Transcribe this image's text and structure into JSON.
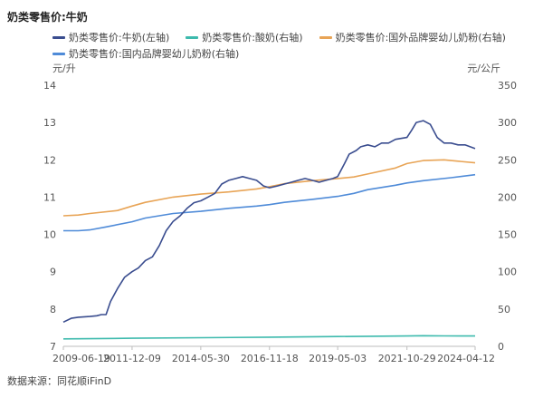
{
  "header": {
    "title": "奶类零售价:牛奶"
  },
  "footer": {
    "source": "数据来源：同花顺iFinD"
  },
  "chart_data": {
    "type": "line",
    "left_unit": "元/升",
    "right_unit": "元/公斤",
    "left_axis": {
      "ylim": [
        7,
        14
      ],
      "ticks": [
        "7",
        "8",
        "9",
        "10",
        "11",
        "12",
        "13",
        "14"
      ]
    },
    "right_axis": {
      "ylim": [
        0,
        350
      ],
      "ticks": [
        "0",
        "50",
        "100",
        "150",
        "200",
        "250",
        "300",
        "350"
      ]
    },
    "x_ticks": [
      "2009-06-19",
      "2011-12-09",
      "2014-05-30",
      "2016-11-18",
      "2019-05-03",
      "2021-10-29",
      "2024-04-12"
    ],
    "x_range": [
      "2009-06-19",
      "2024-04-12"
    ],
    "grid": false,
    "legend_position": "top",
    "series": [
      {
        "name": "奶类零售价:牛奶(左轴)",
        "axis": "left",
        "color": "#3a4d8f",
        "x": [
          "2009-06-19",
          "2009-10-01",
          "2010-01-01",
          "2010-06-01",
          "2010-09-01",
          "2010-11-01",
          "2011-01-01",
          "2011-03-01",
          "2011-06-01",
          "2011-09-01",
          "2011-12-09",
          "2012-03-01",
          "2012-06-01",
          "2012-09-01",
          "2012-12-01",
          "2013-03-01",
          "2013-06-01",
          "2013-09-01",
          "2013-12-01",
          "2014-03-01",
          "2014-05-30",
          "2014-09-01",
          "2014-12-01",
          "2015-03-01",
          "2015-06-01",
          "2015-09-01",
          "2015-12-01",
          "2016-03-01",
          "2016-06-01",
          "2016-09-01",
          "2016-11-18",
          "2017-03-01",
          "2017-06-01",
          "2017-09-01",
          "2017-12-01",
          "2018-03-01",
          "2018-06-01",
          "2018-09-01",
          "2018-12-01",
          "2019-03-01",
          "2019-05-03",
          "2019-08-01",
          "2019-10-01",
          "2020-01-01",
          "2020-03-01",
          "2020-06-01",
          "2020-09-01",
          "2020-12-01",
          "2021-03-01",
          "2021-06-01",
          "2021-10-29",
          "2022-01-01",
          "2022-03-01",
          "2022-06-01",
          "2022-09-01",
          "2022-12-01",
          "2023-03-01",
          "2023-06-01",
          "2023-09-01",
          "2023-12-01",
          "2024-04-12"
        ],
        "values": [
          7.65,
          7.75,
          7.78,
          7.8,
          7.82,
          7.85,
          7.85,
          8.2,
          8.55,
          8.85,
          9.0,
          9.1,
          9.3,
          9.4,
          9.7,
          10.1,
          10.35,
          10.5,
          10.7,
          10.85,
          10.9,
          11.0,
          11.1,
          11.35,
          11.45,
          11.5,
          11.55,
          11.5,
          11.45,
          11.3,
          11.25,
          11.3,
          11.35,
          11.4,
          11.45,
          11.5,
          11.45,
          11.4,
          11.45,
          11.5,
          11.55,
          11.9,
          12.15,
          12.25,
          12.35,
          12.4,
          12.35,
          12.45,
          12.45,
          12.55,
          12.6,
          12.8,
          13.0,
          13.05,
          12.95,
          12.6,
          12.45,
          12.45,
          12.4,
          12.4,
          12.3
        ]
      },
      {
        "name": "奶类零售价:酸奶(右轴)",
        "axis": "right",
        "color": "#3dbaad",
        "x": [
          "2009-06-19",
          "2011-12-09",
          "2014-05-30",
          "2016-11-18",
          "2019-05-03",
          "2021-10-29",
          "2022-06-01",
          "2023-03-01",
          "2024-04-12"
        ],
        "values": [
          10.0,
          10.8,
          11.5,
          12.3,
          13.1,
          13.8,
          14.2,
          14.0,
          13.9
        ]
      },
      {
        "name": "奶类零售价:国外品牌婴幼儿奶粉(右轴)",
        "axis": "right",
        "color": "#e8a456",
        "x": [
          "2009-06-19",
          "2010-01-01",
          "2010-06-01",
          "2011-06-01",
          "2011-12-09",
          "2012-06-01",
          "2013-06-01",
          "2014-05-30",
          "2015-06-01",
          "2016-06-01",
          "2016-11-18",
          "2017-06-01",
          "2018-06-01",
          "2019-05-03",
          "2019-12-01",
          "2020-06-01",
          "2021-06-01",
          "2021-10-29",
          "2022-06-01",
          "2023-03-01",
          "2023-06-01",
          "2024-04-12"
        ],
        "values": [
          175,
          176,
          178,
          182,
          188,
          193,
          200,
          204,
          207,
          211,
          214,
          218,
          222,
          225,
          227,
          231,
          239,
          245,
          249,
          250,
          249,
          246
        ]
      },
      {
        "name": "奶类零售价:国内品牌婴幼儿奶粉(右轴)",
        "axis": "right",
        "color": "#4f8bd8",
        "x": [
          "2009-06-19",
          "2010-01-01",
          "2010-06-01",
          "2011-01-01",
          "2011-12-09",
          "2012-06-01",
          "2013-06-01",
          "2014-05-30",
          "2015-06-01",
          "2016-06-01",
          "2016-11-18",
          "2017-06-01",
          "2018-06-01",
          "2019-05-03",
          "2019-12-01",
          "2020-06-01",
          "2021-06-01",
          "2021-10-29",
          "2022-06-01",
          "2023-06-01",
          "2024-04-12"
        ],
        "values": [
          155,
          155,
          156,
          160,
          167,
          172,
          178,
          181,
          185,
          188,
          190,
          193,
          197,
          201,
          205,
          210,
          216,
          219,
          222,
          226,
          230
        ]
      }
    ]
  }
}
